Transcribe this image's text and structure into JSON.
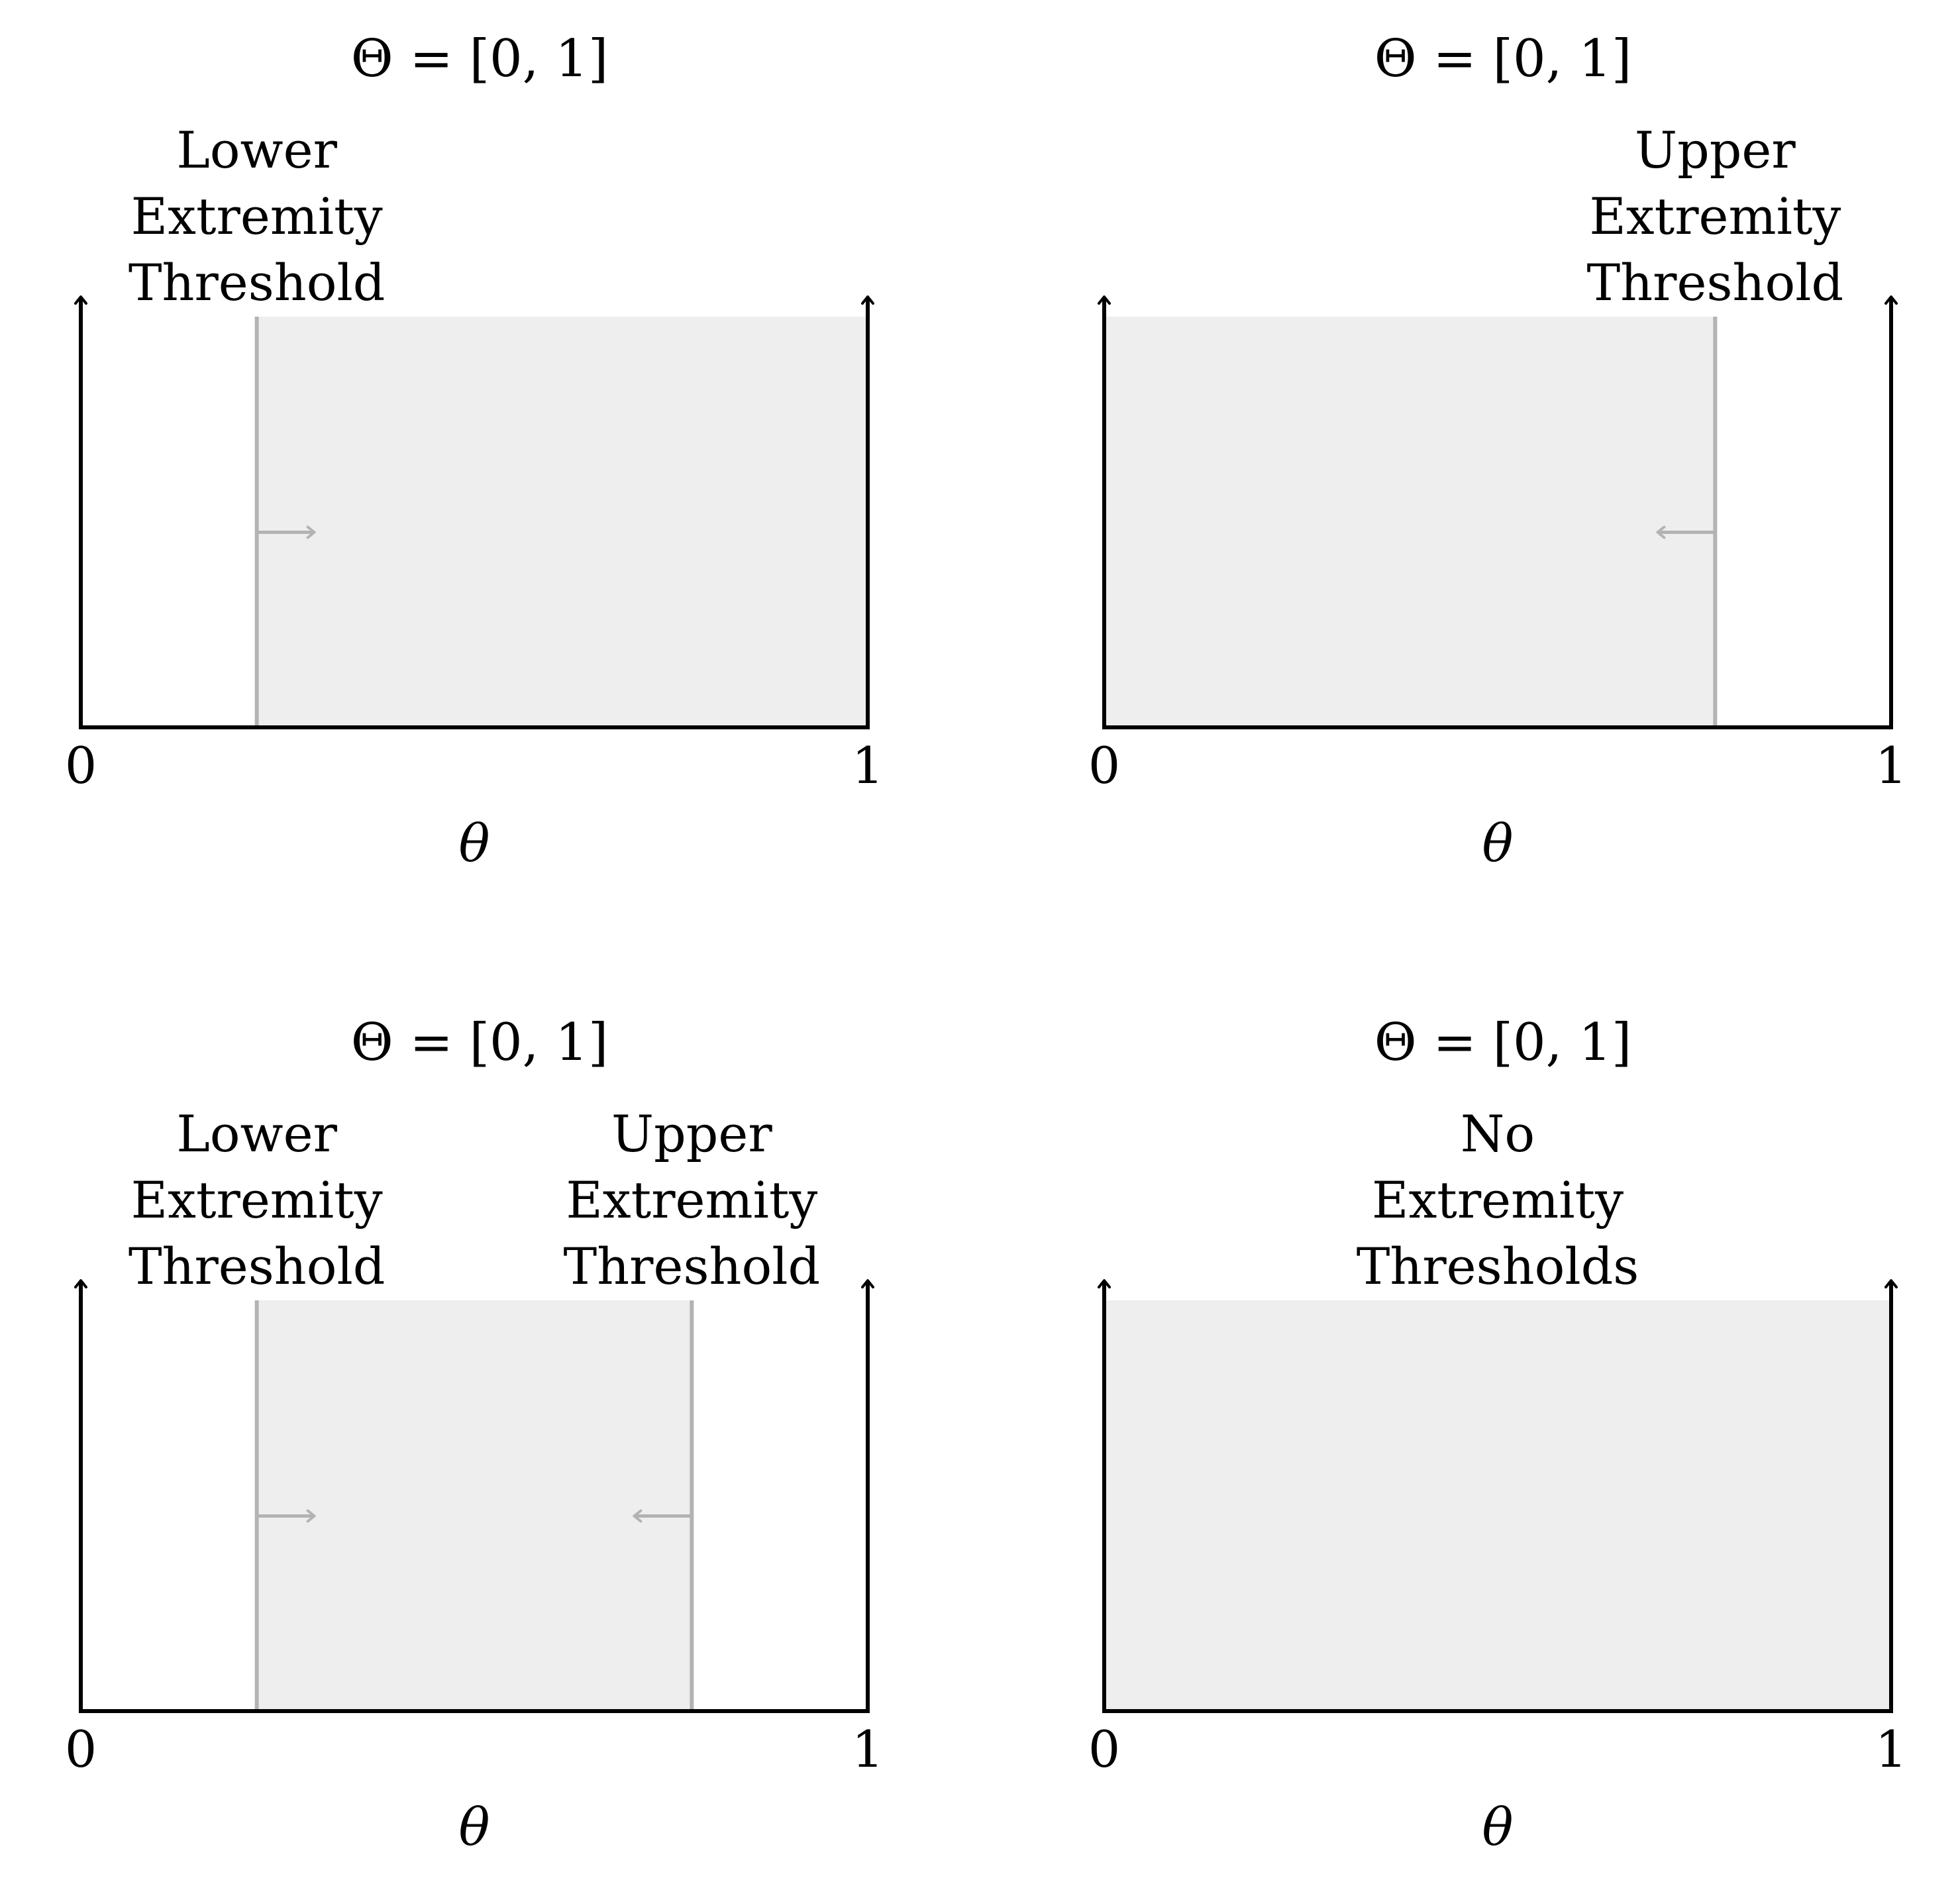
{
  "panels": [
    {
      "title": "Θ = [0, 1]",
      "label_lines": {
        "lower": [
          "Lower",
          "Extremity",
          "Threshold"
        ],
        "upper": []
      },
      "axis": {
        "min_label": "0",
        "max_label": "1",
        "var_label": "θ"
      },
      "domain": [
        0,
        1
      ],
      "thresholds": {
        "lower": 0.2236,
        "upper": null
      },
      "shaded_region": [
        0.2236,
        1
      ]
    },
    {
      "title": "Θ = [0, 1]",
      "label_lines": {
        "lower": [],
        "upper": [
          "Upper",
          "Extremity",
          "Threshold"
        ]
      },
      "axis": {
        "min_label": "0",
        "max_label": "1",
        "var_label": "θ"
      },
      "domain": [
        0,
        1
      ],
      "thresholds": {
        "lower": null,
        "upper": 0.7764
      },
      "shaded_region": [
        0,
        0.7764
      ]
    },
    {
      "title": "Θ = [0, 1]",
      "label_lines": {
        "lower": [
          "Lower",
          "Extremity",
          "Threshold"
        ],
        "upper": [
          "Upper",
          "Extremity",
          "Threshold"
        ]
      },
      "axis": {
        "min_label": "0",
        "max_label": "1",
        "var_label": "θ"
      },
      "domain": [
        0,
        1
      ],
      "thresholds": {
        "lower": 0.2236,
        "upper": 0.7764
      },
      "shaded_region": [
        0.2236,
        0.7764
      ]
    },
    {
      "title": "Θ = [0, 1]",
      "label_lines": {
        "none": [
          "No",
          "Extremity",
          "Thresholds"
        ]
      },
      "axis": {
        "min_label": "0",
        "max_label": "1",
        "var_label": "θ"
      },
      "domain": [
        0,
        1
      ],
      "thresholds": {
        "lower": null,
        "upper": null
      },
      "shaded_region": [
        0,
        1
      ]
    }
  ],
  "colors": {
    "axis": "#000000",
    "threshold": "#b3b3b3",
    "shade": "#eeeeee",
    "text": "#000000"
  }
}
